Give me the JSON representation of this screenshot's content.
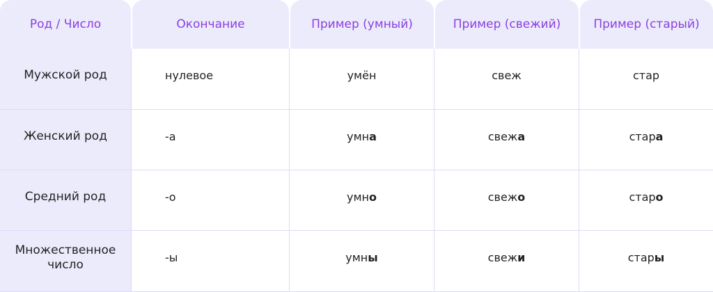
{
  "headers": [
    "Род / Число",
    "Окончание",
    "Пример (умный)",
    "Пример (свежий)",
    "Пример (старый)"
  ],
  "rows": [
    {
      "label": "Мужской род",
      "ending": "нулевое",
      "examples": [
        {
          "stem": "умён",
          "end": ""
        },
        {
          "stem": "свеж",
          "end": ""
        },
        {
          "stem": "стар",
          "end": ""
        }
      ]
    },
    {
      "label": "Женский род",
      "ending": "-а",
      "examples": [
        {
          "stem": "умн",
          "end": "а"
        },
        {
          "stem": "свеж",
          "end": "а"
        },
        {
          "stem": "стар",
          "end": "а"
        }
      ]
    },
    {
      "label": "Средний род",
      "ending": "-о",
      "examples": [
        {
          "stem": "умн",
          "end": "о"
        },
        {
          "stem": "свеж",
          "end": "о"
        },
        {
          "stem": "стар",
          "end": "о"
        }
      ]
    },
    {
      "label": "Множественное число",
      "ending": "-ы",
      "examples": [
        {
          "stem": "умн",
          "end": "ы"
        },
        {
          "stem": "свеж",
          "end": "и"
        },
        {
          "stem": "стар",
          "end": "ы"
        }
      ]
    }
  ],
  "colors": {
    "header_text": "#8a3fe0",
    "header_bg": "#ecebfc",
    "border": "#dcdaf7"
  }
}
